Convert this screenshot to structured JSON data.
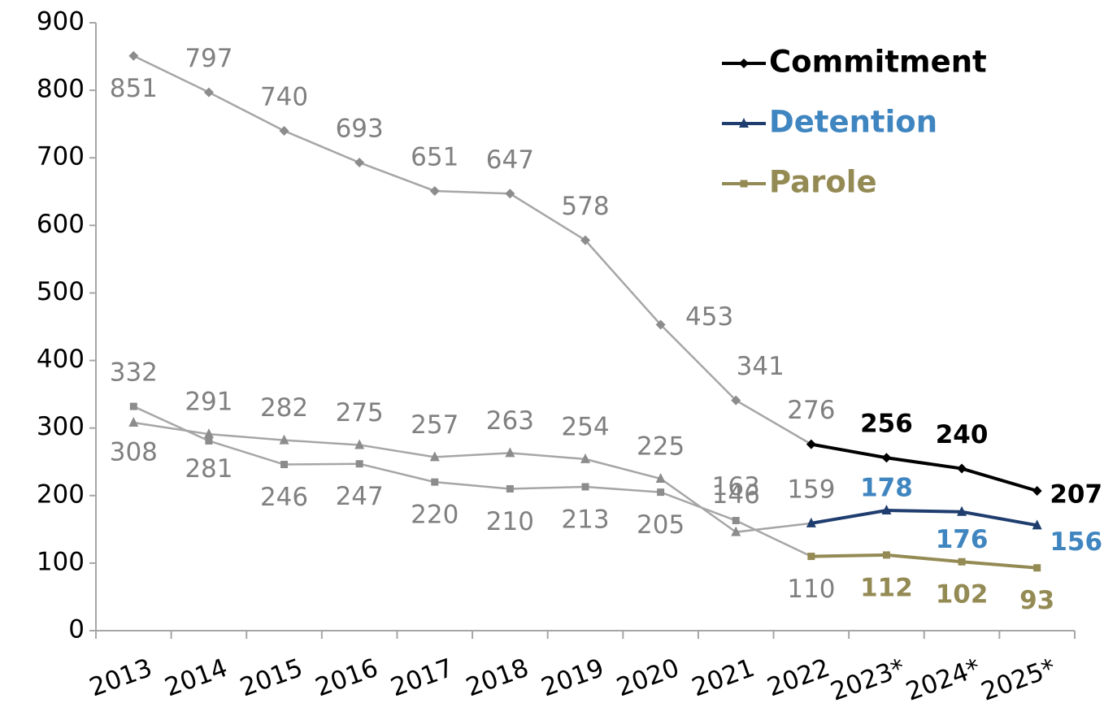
{
  "chart_data": {
    "type": "line",
    "categories": [
      "2013",
      "2014",
      "2015",
      "2016",
      "2017",
      "2018",
      "2019",
      "2020",
      "2021",
      "2022",
      "2023*",
      "2024*",
      "2025*"
    ],
    "series": [
      {
        "name": "Commitment",
        "color": "#000000",
        "label_color": "#000000",
        "marker": "diamond",
        "values": [
          851,
          797,
          740,
          693,
          651,
          647,
          578,
          453,
          341,
          276,
          256,
          240,
          207
        ]
      },
      {
        "name": "Detention",
        "color": "#1f3d6e",
        "label_color": "#3f85c0",
        "marker": "triangle",
        "values": [
          308,
          291,
          282,
          275,
          257,
          263,
          254,
          225,
          146,
          159,
          178,
          176,
          156
        ]
      },
      {
        "name": "Parole",
        "color": "#948a54",
        "label_color": "#948a54",
        "marker": "square",
        "values": [
          332,
          281,
          246,
          247,
          220,
          210,
          213,
          205,
          163,
          110,
          112,
          102,
          93
        ]
      }
    ],
    "history_color": "#a6a6a6",
    "history_label_color": "#808080",
    "color_from": "2022",
    "ylim": [
      0,
      900
    ],
    "yticks": [
      0,
      100,
      200,
      300,
      400,
      500,
      600,
      700,
      800,
      900
    ],
    "grid": false,
    "legend": "upper right"
  }
}
